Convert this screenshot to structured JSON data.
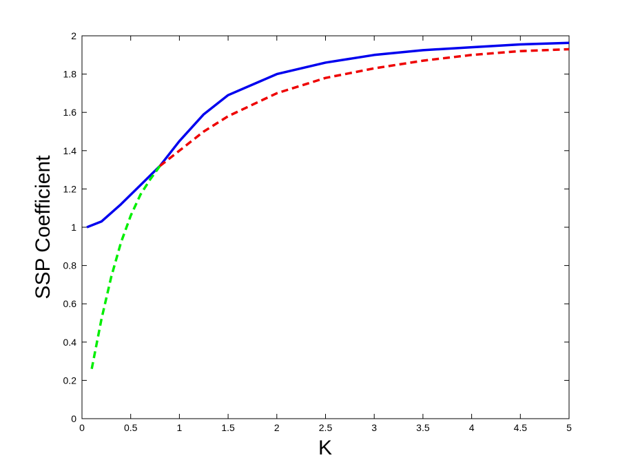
{
  "chart_data": {
    "type": "line",
    "xlabel": "K",
    "ylabel": "SSP Coefficient",
    "xlim": [
      0,
      5
    ],
    "ylim": [
      0,
      2
    ],
    "xticks": [
      0,
      0.5,
      1,
      1.5,
      2,
      2.5,
      3,
      3.5,
      4,
      4.5,
      5
    ],
    "yticks": [
      0,
      0.2,
      0.4,
      0.6,
      0.8,
      1,
      1.2,
      1.4,
      1.6,
      1.8,
      2
    ],
    "grid": false,
    "series": [
      {
        "color": "#0000ee",
        "dash": "solid",
        "x": [
          0.05,
          0.2,
          0.4,
          0.6,
          0.8,
          1,
          1.25,
          1.5,
          2,
          2.5,
          3,
          3.5,
          4,
          4.5,
          5
        ],
        "values": [
          1.0,
          1.03,
          1.12,
          1.22,
          1.32,
          1.45,
          1.59,
          1.69,
          1.8,
          1.86,
          1.9,
          1.925,
          1.94,
          1.955,
          1.963
        ]
      },
      {
        "color": "#00ee00",
        "dash": "dashed",
        "x": [
          0.1,
          0.2,
          0.3,
          0.4,
          0.5,
          0.6,
          0.7,
          0.8
        ],
        "values": [
          0.26,
          0.52,
          0.74,
          0.92,
          1.06,
          1.17,
          1.25,
          1.32
        ]
      },
      {
        "color": "#ee0000",
        "dash": "dashed",
        "x": [
          0.8,
          1,
          1.25,
          1.5,
          2,
          2.5,
          3,
          3.5,
          4,
          4.5,
          5
        ],
        "values": [
          1.32,
          1.4,
          1.5,
          1.58,
          1.7,
          1.78,
          1.83,
          1.87,
          1.9,
          1.92,
          1.93
        ]
      }
    ]
  }
}
